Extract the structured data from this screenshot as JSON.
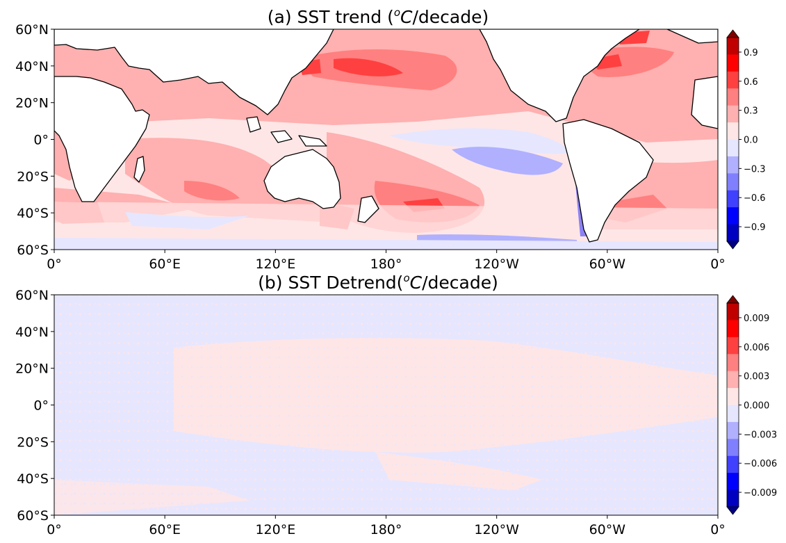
{
  "panels": [
    {
      "title_prefix": "(a) SST trend (",
      "title_unit_sup": "o",
      "title_unit_rest": "C/decade)",
      "colorbar_ticks": [
        "0.9",
        "0.6",
        "0.3",
        "0.0",
        "−0.3",
        "−0.6",
        "−0.9"
      ],
      "colorbar_tick_values": [
        0.9,
        0.6,
        0.3,
        0.0,
        -0.3,
        -0.6,
        -0.9
      ],
      "colorbar_range": [
        -1.05,
        1.05
      ]
    },
    {
      "title_prefix": "(b) SST Detrend(",
      "title_unit_sup": "o",
      "title_unit_rest": "C/decade)",
      "colorbar_ticks": [
        "0.009",
        "0.006",
        "0.003",
        "0.000",
        "−0.003",
        "−0.006",
        "−0.009"
      ],
      "colorbar_tick_values": [
        0.009,
        0.006,
        0.003,
        0.0,
        -0.003,
        -0.006,
        -0.009
      ],
      "colorbar_range": [
        -0.0105,
        0.0105
      ]
    }
  ],
  "lat_ticks": [
    "60°N",
    "40°N",
    "20°N",
    "0°",
    "20°S",
    "40°S",
    "60°S"
  ],
  "lon_ticks": [
    "0°",
    "60°E",
    "120°E",
    "180°",
    "120°W",
    "60°W",
    "0°"
  ],
  "colors": {
    "colorbar_levels": [
      "#000080",
      "#0000c0",
      "#0000ff",
      "#4040ff",
      "#8080ff",
      "#b0b0ff",
      "#e6e6ff",
      "#ffe6e6",
      "#ffb0b0",
      "#ff8080",
      "#ff4040",
      "#ff0000",
      "#c00000",
      "#800000"
    ],
    "land": "#ffffff",
    "coast": "#000000"
  }
}
